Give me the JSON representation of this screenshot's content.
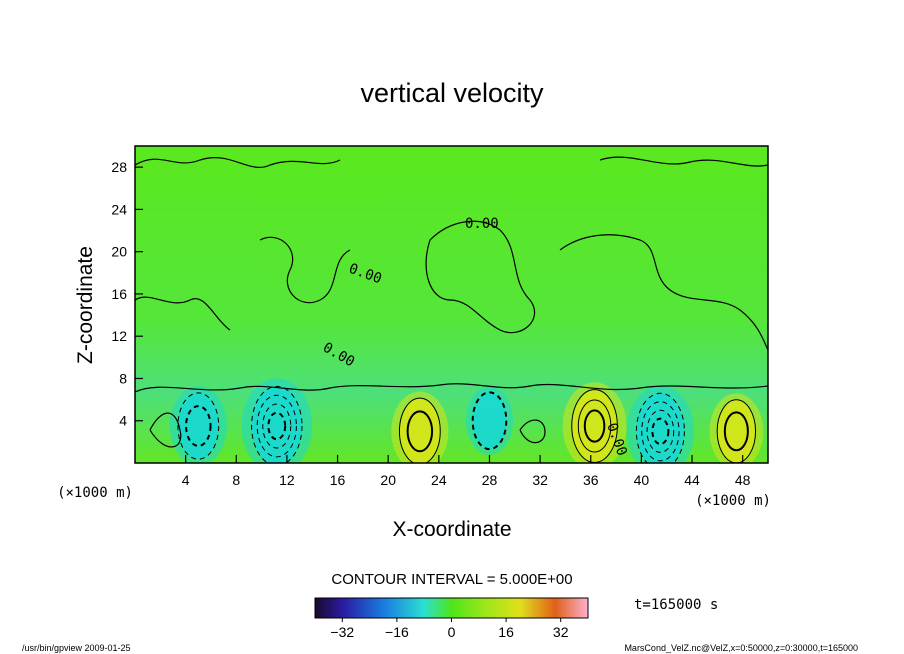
{
  "chart_data": {
    "type": "heatmap",
    "title": "vertical velocity",
    "xlabel": "X-coordinate",
    "ylabel": "Z-coordinate",
    "x_unit": "(×1000 m)",
    "y_unit": "(×1000 m)",
    "xlim": [
      0,
      50
    ],
    "ylim": [
      0,
      30
    ],
    "x_ticks": [
      "4",
      "8",
      "12",
      "16",
      "20",
      "24",
      "28",
      "32",
      "36",
      "40",
      "44",
      "48"
    ],
    "y_ticks": [
      "4",
      "8",
      "12",
      "16",
      "20",
      "24",
      "28"
    ],
    "contour_labels": [
      "0.00",
      "0.00",
      "0.00",
      "0.00"
    ],
    "contour_interval": "CONTOUR INTERVAL = 5.000E+00",
    "time_label": "t=165000 s",
    "colorbar": {
      "ticks": [
        "−32",
        "−16",
        "0",
        "16",
        "32"
      ],
      "min": -40,
      "max": 40
    },
    "features": [
      {
        "x": 5.0,
        "z": 3.5,
        "value": -14
      },
      {
        "x": 11.2,
        "z": 3.5,
        "value": -22
      },
      {
        "x": 22.5,
        "z": 3.0,
        "value": 14
      },
      {
        "x": 28.0,
        "z": 4.0,
        "value": -8
      },
      {
        "x": 36.3,
        "z": 3.5,
        "value": 18
      },
      {
        "x": 41.5,
        "z": 3.0,
        "value": -20
      },
      {
        "x": 47.5,
        "z": 3.0,
        "value": 12
      }
    ],
    "grid": false,
    "colors": {
      "background": "#5ee61a",
      "cool": "#1ad9d0",
      "warm": "#d6e61a"
    }
  },
  "footer": {
    "left": "/usr/bin/gpview  2009-01-25",
    "right": "MarsCond_VelZ.nc@VelZ,x=0:50000,z=0:30000,t=165000"
  }
}
